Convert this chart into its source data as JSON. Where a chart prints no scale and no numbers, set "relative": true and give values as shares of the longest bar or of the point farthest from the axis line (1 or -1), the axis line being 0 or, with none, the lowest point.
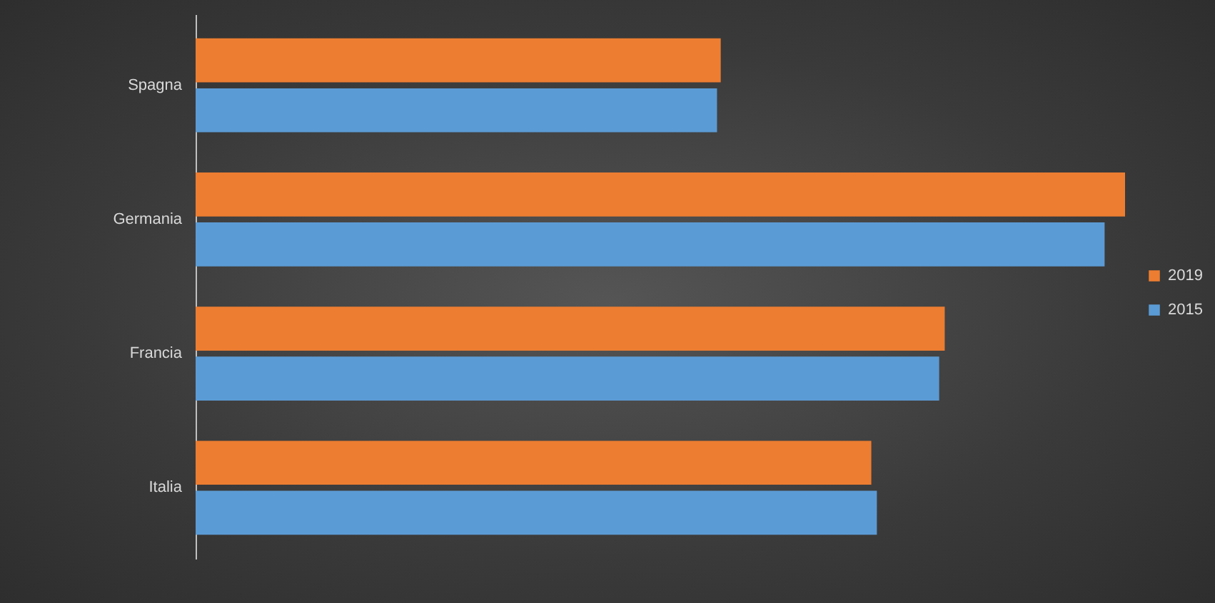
{
  "chart_data": {
    "type": "bar",
    "orientation": "horizontal",
    "relative": true,
    "categories": [
      "Spagna",
      "Germania",
      "Francia",
      "Italia"
    ],
    "series": [
      {
        "name": "2019",
        "color": "#ed7d31",
        "values": [
          0.565,
          1,
          0.806,
          0.727
        ]
      },
      {
        "name": "2015",
        "color": "#5b9bd5",
        "values": [
          0.561,
          0.978,
          0.8,
          0.733
        ]
      }
    ],
    "legend": "right"
  }
}
